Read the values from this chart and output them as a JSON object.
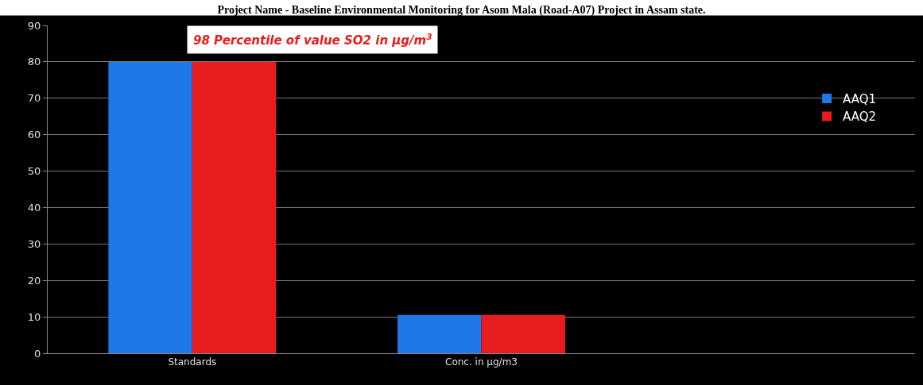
{
  "chart_data": {
    "type": "bar",
    "title": "Project Name - Baseline Environmental Monitoring for Asom Mala (Road-A07) Project in Assam state.",
    "categories": [
      "Standards",
      "Conc. in µg/m3",
      null
    ],
    "series": [
      {
        "name": "AAQ1",
        "color": "#1f78e8",
        "values": [
          80,
          10.5,
          null
        ]
      },
      {
        "name": "AAQ2",
        "color": "#e81c1c",
        "values": [
          80,
          10.5,
          null
        ]
      }
    ],
    "annotations": [
      "98 Percentile of value SO2 in µg/m$^{3}$"
    ],
    "ylim": [
      0,
      90
    ],
    "yticks": [
      0,
      10,
      20,
      30,
      40,
      50,
      60,
      70,
      80,
      90
    ],
    "grid": "y",
    "legend": "right"
  }
}
